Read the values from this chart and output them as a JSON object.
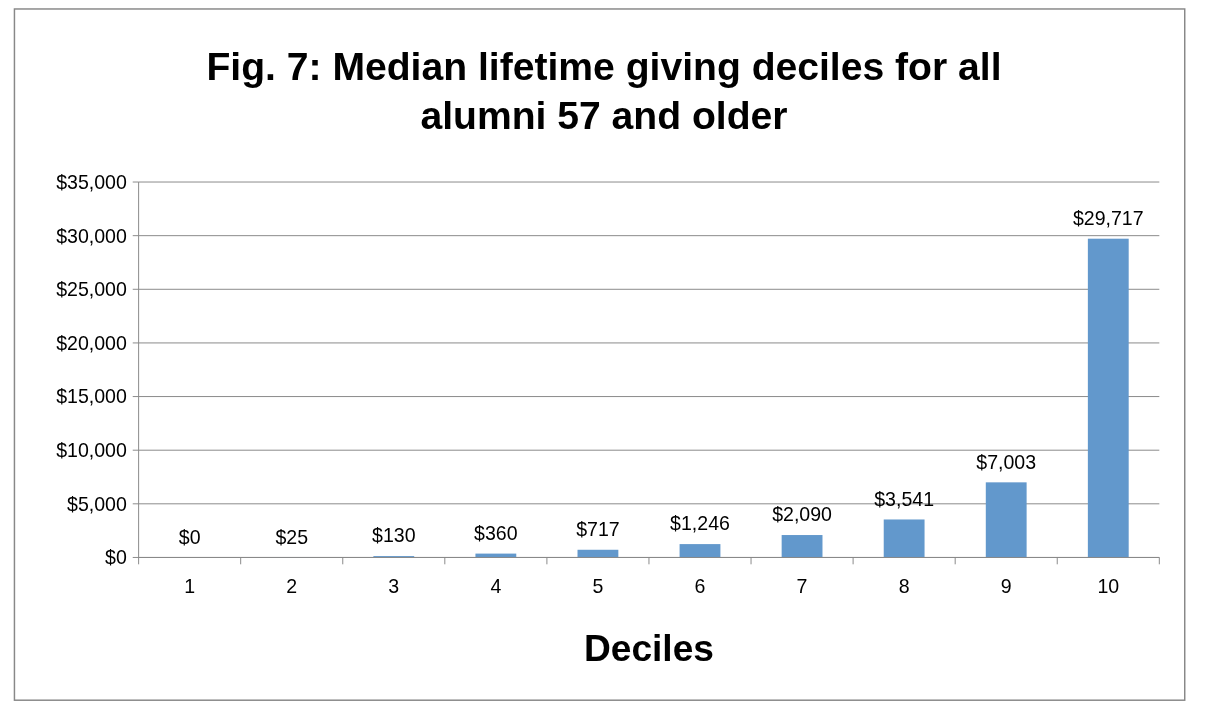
{
  "chart_data": {
    "type": "bar",
    "title": "Fig. 7: Median lifetime giving deciles for all alumni 57 and older",
    "xlabel": "Deciles",
    "categories": [
      "1",
      "2",
      "3",
      "4",
      "5",
      "6",
      "7",
      "8",
      "9",
      "10"
    ],
    "values": [
      0,
      25,
      130,
      360,
      717,
      1246,
      2090,
      3541,
      7003,
      29717
    ],
    "value_labels": [
      "$0",
      "$25",
      "$130",
      "$360",
      "$717",
      "$1,246",
      "$2,090",
      "$3,541",
      "$7,003",
      "$29,717"
    ],
    "color": "#6298cc",
    "ylim": [
      0,
      35000
    ],
    "yticks": [
      {
        "value": 0,
        "label": "$0"
      },
      {
        "value": 5000,
        "label": "$5,000"
      },
      {
        "value": 10000,
        "label": "$10,000"
      },
      {
        "value": 15000,
        "label": "$15,000"
      },
      {
        "value": 20000,
        "label": "$20,000"
      },
      {
        "value": 25000,
        "label": "$25,000"
      },
      {
        "value": 30000,
        "label": "$30,000"
      },
      {
        "value": 35000,
        "label": "$35,000"
      }
    ],
    "grid": "y"
  }
}
